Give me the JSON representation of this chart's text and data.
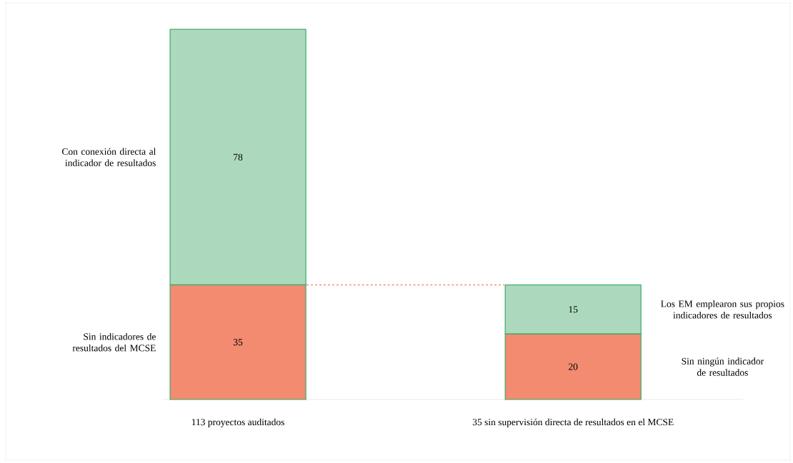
{
  "chart_data": {
    "type": "bar",
    "stacked": true,
    "data_labels": true,
    "categories": [
      "113 proyectos auditados",
      "35 sin supervisión directa de resultados en el MCSE"
    ],
    "series": [
      {
        "color": "#f28b6f",
        "values": [
          35,
          20
        ]
      },
      {
        "color": "#acd9bd",
        "values": [
          78,
          15
        ]
      }
    ],
    "ref_lines": [
      {
        "axis": "y",
        "value": 35,
        "color": "#f08060",
        "line_style": "dashed"
      }
    ],
    "annotations": [
      "Con conexión directa al indicador de resultados",
      "Sin indicadores de resultados del MCSE",
      "Los EM emplearon sus propios indicadores de resultados",
      "Sin ningún indicador de resultados"
    ]
  }
}
